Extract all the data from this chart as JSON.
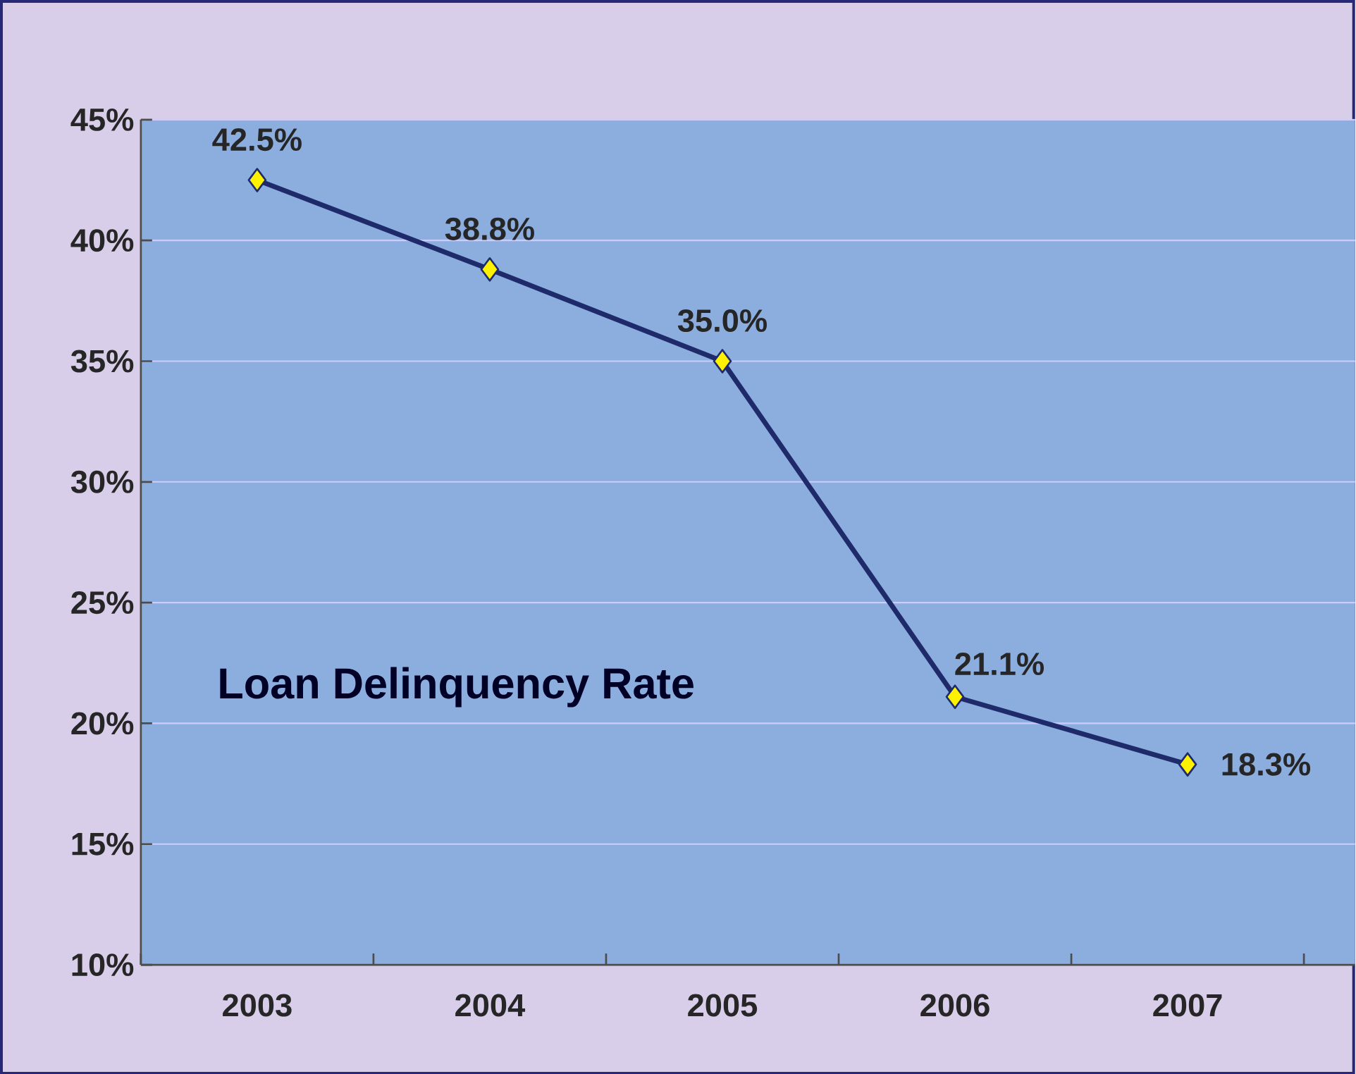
{
  "chart_data": {
    "type": "line",
    "title": "Loan Delinquency Rate",
    "categories": [
      "2003",
      "2004",
      "2005",
      "2006",
      "2007"
    ],
    "series": [
      {
        "color": "#1f2a6b",
        "values": [
          42.5,
          38.8,
          35.0,
          21.1,
          18.3
        ]
      }
    ],
    "value_labels": [
      "42.5%",
      "38.8%",
      "35.0%",
      "21.1%",
      "18.3%"
    ],
    "ylim": [
      10,
      45
    ],
    "yticks": [
      {
        "value": 10,
        "label": "10%"
      },
      {
        "value": 15,
        "label": "15%"
      },
      {
        "value": 20,
        "label": "20%"
      },
      {
        "value": 25,
        "label": "25%"
      },
      {
        "value": 30,
        "label": "30%"
      },
      {
        "value": 35,
        "label": "35%"
      },
      {
        "value": 40,
        "label": "40%"
      },
      {
        "value": 45,
        "label": "45%"
      }
    ],
    "grid": "y",
    "marker": "diamond",
    "line_style": "solid"
  }
}
